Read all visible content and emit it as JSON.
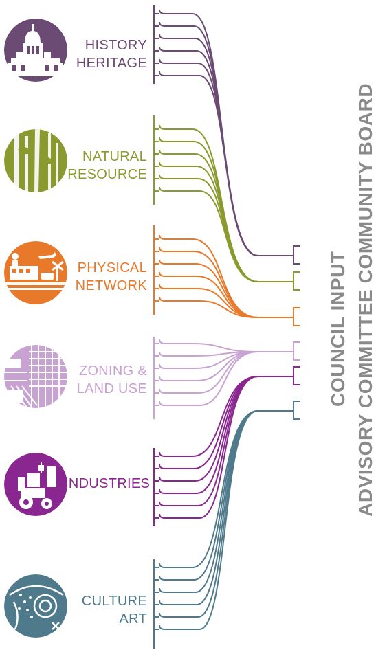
{
  "categories": [
    {
      "id": "history",
      "lines": [
        "HISTORY",
        "HERITAGE"
      ],
      "color": "#6b4a73",
      "icon": "dome-building-icon"
    },
    {
      "id": "natural",
      "lines": [
        "NATURAL",
        "RESOURCE"
      ],
      "color": "#8b9a2e",
      "icon": "tree-icon"
    },
    {
      "id": "physical",
      "lines": [
        "PHYSICAL",
        "NETWORK"
      ],
      "color": "#e8792a",
      "icon": "train-plane-icon"
    },
    {
      "id": "zoning",
      "lines": [
        "ZONING &",
        "LAND USE"
      ],
      "color": "#c7a2d2",
      "icon": "city-grid-icon"
    },
    {
      "id": "industries",
      "lines": [
        "INDUSTRIES"
      ],
      "color": "#8a268f",
      "icon": "tractor-factory-icon"
    },
    {
      "id": "culture",
      "lines": [
        "CULTURE",
        "ART"
      ],
      "color": "#4f7a8c",
      "icon": "art-pattern-icon"
    }
  ],
  "vertical_text": {
    "main": "COUNCIL INPUT",
    "sub": "ADVISORY COMMITTEE COMMUNITY BOARD"
  }
}
